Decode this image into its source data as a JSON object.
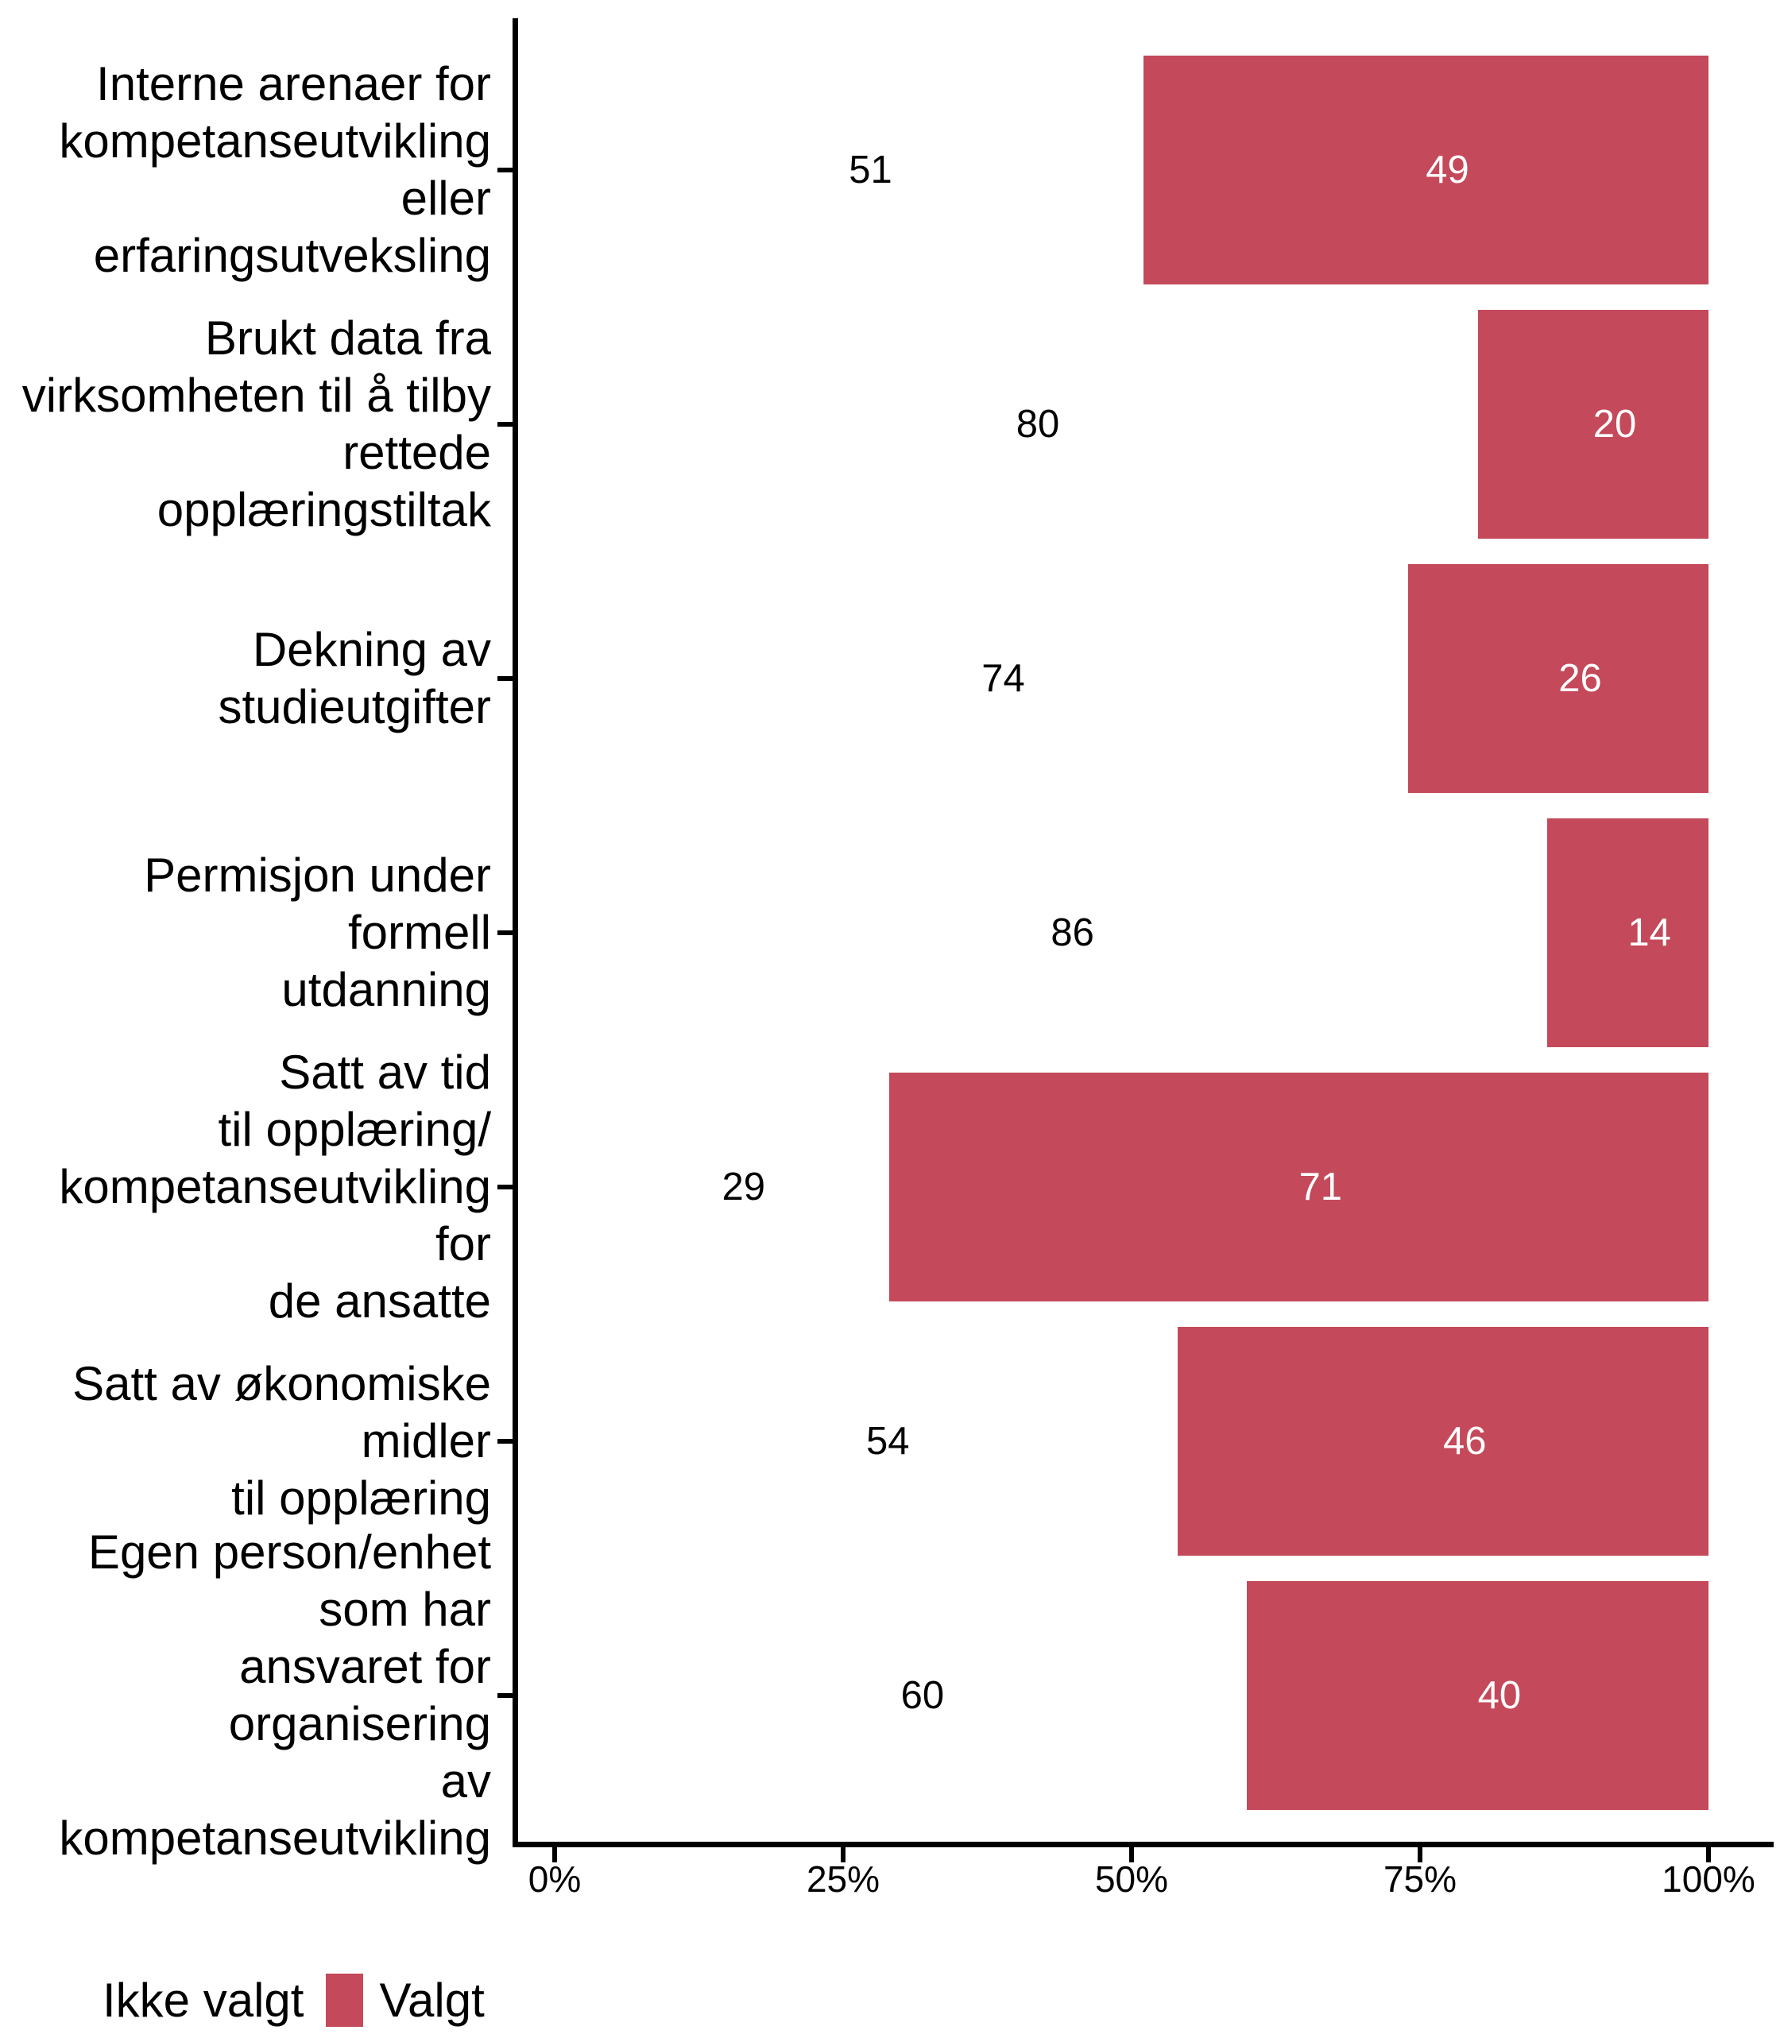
{
  "chart_data": {
    "type": "bar",
    "orientation": "horizontal",
    "stacked": true,
    "title": "",
    "xlabel": "",
    "ylabel": "",
    "xlim": [
      0,
      100
    ],
    "grid": false,
    "x_ticks": [
      {
        "label": "0%",
        "value": 0
      },
      {
        "label": "25%",
        "value": 25
      },
      {
        "label": "50%",
        "value": 50
      },
      {
        "label": "75%",
        "value": 75
      },
      {
        "label": "100%",
        "value": 100
      }
    ],
    "categories": [
      "Interne arenaer for\nkompetanseutvikling eller\nerfaringsutveksling",
      "Brukt data fra\nvirksomheten til å tilby\nrettede opplæringstiltak",
      "Dekning av studieutgifter",
      "Permisjon under formell\nutdanning",
      "Satt av tid\ntil opplæring/\nkompetanseutvikling for\nde ansatte",
      "Satt av økonomiske midler\ntil opplæring",
      "Egen person/enhet som har\nansvaret for organisering\nav kompetanseutvikling"
    ],
    "series": [
      {
        "name": "Ikke valgt",
        "color": "#ffffff",
        "label_color": "#000000",
        "values": [
          51,
          80,
          74,
          86,
          29,
          54,
          60
        ]
      },
      {
        "name": "Valgt",
        "color": "#c4495a",
        "label_color": "#ffffff",
        "values": [
          49,
          20,
          26,
          14,
          71,
          46,
          40
        ]
      }
    ],
    "legend_position": "bottom-left"
  },
  "legend": {
    "items": [
      {
        "label": "Ikke valgt",
        "color": "#ffffff"
      },
      {
        "label": "Valgt",
        "color": "#c4495a"
      }
    ]
  },
  "colors": {
    "axis": "#000000",
    "background": "#ffffff",
    "text": "#000000"
  }
}
